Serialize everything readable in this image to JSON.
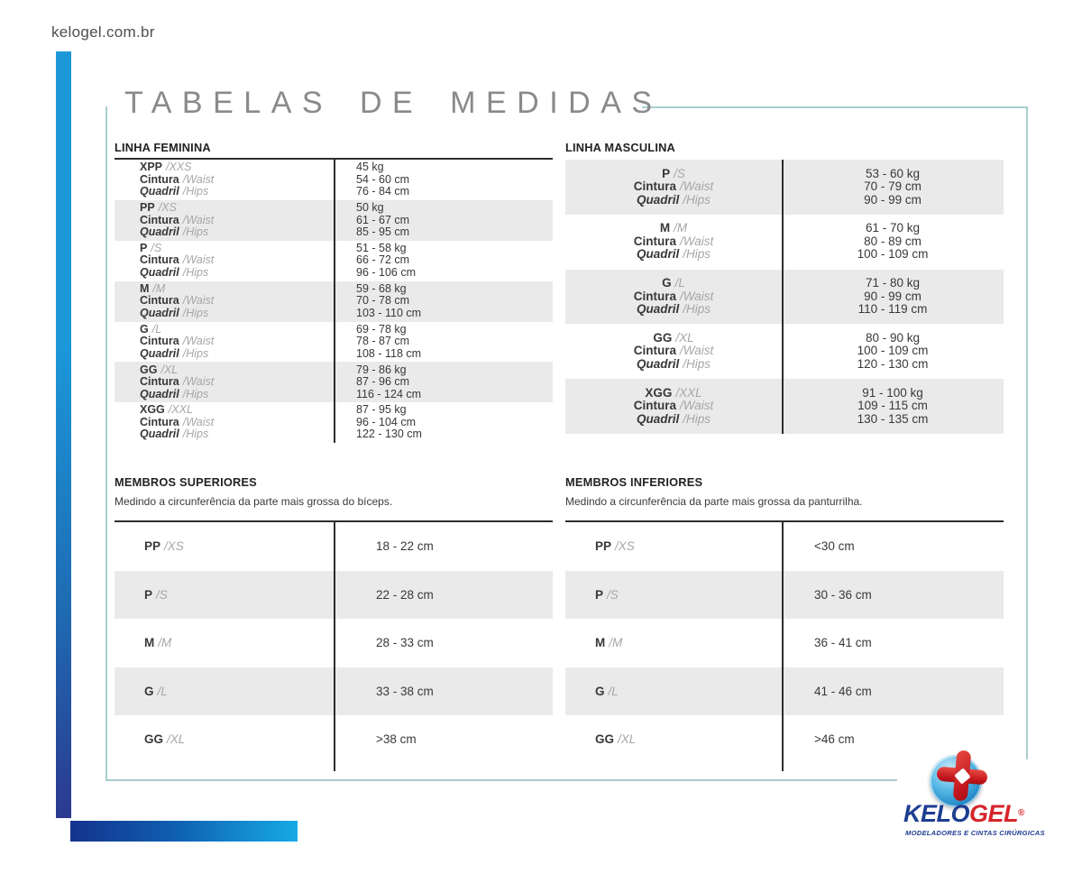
{
  "site_url": "kelogel.com.br",
  "page_title": "TABELAS DE MEDIDAS",
  "labels": {
    "waist_pt": "Cintura",
    "waist_en": "/Waist",
    "hips_pt": "Quadril",
    "hips_en": "/Hips"
  },
  "linha_feminina": {
    "header": "LINHA FEMININA",
    "rows": [
      {
        "size": "XPP",
        "size_intl": "/XXS",
        "weight": "45 kg",
        "waist": "54 - 60 cm",
        "hips": "76 - 84 cm"
      },
      {
        "size": "PP",
        "size_intl": "/XS",
        "weight": "50 kg",
        "waist": "61 - 67 cm",
        "hips": "85 - 95 cm"
      },
      {
        "size": "P",
        "size_intl": "/S",
        "weight": "51 - 58 kg",
        "waist": "66 - 72 cm",
        "hips": "96 - 106 cm"
      },
      {
        "size": "M",
        "size_intl": "/M",
        "weight": "59 - 68 kg",
        "waist": "70 - 78 cm",
        "hips": "103 - 110 cm"
      },
      {
        "size": "G",
        "size_intl": "/L",
        "weight": "69 - 78 kg",
        "waist": "78 - 87 cm",
        "hips": "108 - 118 cm"
      },
      {
        "size": "GG",
        "size_intl": "/XL",
        "weight": "79 - 86 kg",
        "waist": "87 - 96 cm",
        "hips": "116 - 124 cm"
      },
      {
        "size": "XGG",
        "size_intl": "/XXL",
        "weight": "87 - 95 kg",
        "waist": "96 - 104 cm",
        "hips": "122 - 130 cm"
      }
    ]
  },
  "linha_masculina": {
    "header": "LINHA MASCULINA",
    "rows": [
      {
        "size": "P",
        "size_intl": "/S",
        "weight": "53 - 60 kg",
        "waist": "70 - 79 cm",
        "hips": "90 - 99 cm"
      },
      {
        "size": "M",
        "size_intl": "/M",
        "weight": "61 - 70 kg",
        "waist": "80 - 89 cm",
        "hips": "100 - 109 cm"
      },
      {
        "size": "G",
        "size_intl": "/L",
        "weight": "71 - 80 kg",
        "waist": "90 - 99 cm",
        "hips": "110 - 119 cm"
      },
      {
        "size": "GG",
        "size_intl": "/XL",
        "weight": "80 - 90 kg",
        "waist": "100 - 109 cm",
        "hips": "120 - 130 cm"
      },
      {
        "size": "XGG",
        "size_intl": "/XXL",
        "weight": "91 - 100 kg",
        "waist": "109 - 115 cm",
        "hips": "130 - 135 cm"
      }
    ]
  },
  "membros_superiores": {
    "header": "MEMBROS SUPERIORES",
    "description": "Medindo a circunferência da parte mais grossa do bíceps.",
    "rows": [
      {
        "size": "PP",
        "size_intl": "/XS",
        "value": "18 - 22 cm"
      },
      {
        "size": "P",
        "size_intl": "/S",
        "value": "22 - 28 cm"
      },
      {
        "size": "M",
        "size_intl": "/M",
        "value": "28 - 33 cm"
      },
      {
        "size": "G",
        "size_intl": "/L",
        "value": "33 - 38 cm"
      },
      {
        "size": "GG",
        "size_intl": "/XL",
        "value": ">38 cm"
      }
    ]
  },
  "membros_inferiores": {
    "header": "MEMBROS INFERIORES",
    "description": "Medindo a circunferência da parte mais grossa da panturrilha.",
    "rows": [
      {
        "size": "PP",
        "size_intl": "/XS",
        "value": "<30 cm"
      },
      {
        "size": "P",
        "size_intl": "/S",
        "value": "30 - 36 cm"
      },
      {
        "size": "M",
        "size_intl": "/M",
        "value": "36 - 41 cm"
      },
      {
        "size": "G",
        "size_intl": "/L",
        "value": "41 - 46 cm"
      },
      {
        "size": "GG",
        "size_intl": "/XL",
        "value": ">46 cm"
      }
    ]
  },
  "logo": {
    "brand_part1": "KELO",
    "brand_part2": "GEL",
    "registered_mark": "®",
    "tagline": "MODELADORES E CINTAS CIRÚRGICAS"
  },
  "colors": {
    "accent_blue": "#1c98d9",
    "accent_navy": "#2b3990",
    "brand_red": "#d6252b",
    "teal_border": "#a9cecd",
    "row_gray": "#eaeaea"
  }
}
